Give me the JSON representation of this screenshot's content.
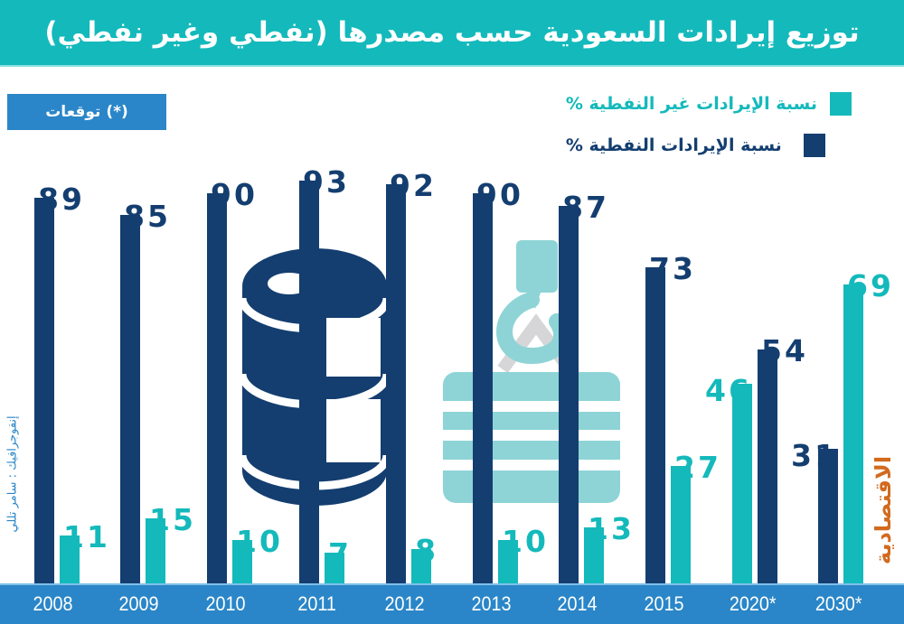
{
  "header": {
    "title": "توزيع إيرادات السعودية حسب مصدرها (نفطي وغير نفطي)"
  },
  "forecast_note": "(*) توقعات",
  "legend": {
    "items": [
      {
        "key": "nonoil",
        "label": "نسبة الإيرادات غير النفطية %",
        "color": "#14b9bb"
      },
      {
        "key": "oil",
        "label": "نسبة الإيرادات النفطية %",
        "color": "#143e70"
      }
    ]
  },
  "credit": "إنفوجرافيك : سامر تللي",
  "logo": "الاقتصادية",
  "colors": {
    "oil": "#143e70",
    "nonoil": "#14b9bb",
    "header": "#14b9bb",
    "axis": "#2a86c8",
    "logo": "#d26a1e"
  },
  "chart_data": {
    "type": "bar",
    "title": "توزيع إيرادات السعودية حسب مصدرها (نفطي وغير نفطي)",
    "xlabel": "",
    "ylabel": "%",
    "ylim": [
      0,
      100
    ],
    "grid": false,
    "legend_position": "top-right",
    "categories": [
      "2008",
      "2009",
      "2010",
      "2011",
      "2012",
      "2013",
      "2014",
      "2015",
      "2020*",
      "2030*"
    ],
    "series": [
      {
        "name": "نسبة الإيرادات النفطية %",
        "values": [
          89,
          85,
          90,
          93,
          92,
          90,
          87,
          73,
          54,
          31
        ]
      },
      {
        "name": "نسبة الإيرادات غير النفطية %",
        "values": [
          11,
          15,
          10,
          7,
          8,
          10,
          13,
          27,
          46,
          69
        ]
      }
    ],
    "annotations": [
      "(*) توقعات"
    ]
  }
}
